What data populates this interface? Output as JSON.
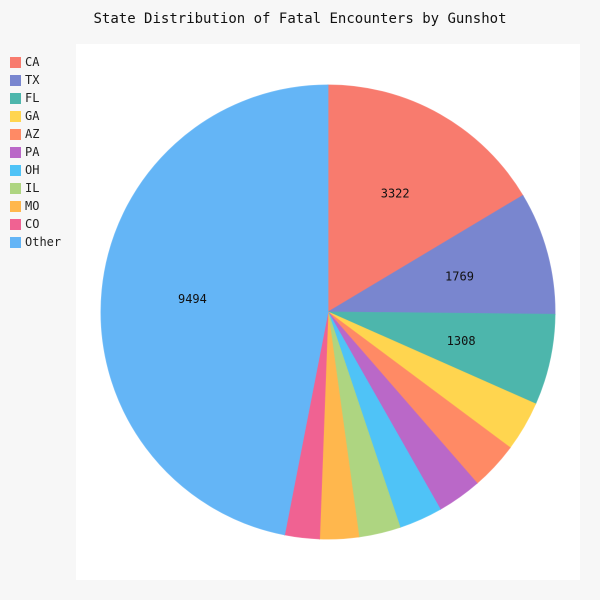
{
  "chart_data": {
    "type": "pie",
    "title": "State Distribution of Fatal Encounters by Gunshot",
    "legend_position": "left",
    "slices": [
      {
        "label": "CA",
        "value": 3322,
        "color": "#f87b6e",
        "show_label": true
      },
      {
        "label": "TX",
        "value": 1769,
        "color": "#7986cf",
        "show_label": true
      },
      {
        "label": "FL",
        "value": 1308,
        "color": "#4db6ac",
        "show_label": true
      },
      {
        "label": "GA",
        "value": 720,
        "color": "#ffd54f",
        "show_label": false
      },
      {
        "label": "AZ",
        "value": 690,
        "color": "#ff8a65",
        "show_label": false
      },
      {
        "label": "PA",
        "value": 640,
        "color": "#ba68c8",
        "show_label": false
      },
      {
        "label": "OH",
        "value": 625,
        "color": "#4fc3f7",
        "show_label": false
      },
      {
        "label": "IL",
        "value": 600,
        "color": "#aed581",
        "show_label": false
      },
      {
        "label": "MO",
        "value": 560,
        "color": "#ffb74d",
        "show_label": false
      },
      {
        "label": "CO",
        "value": 500,
        "color": "#f06292",
        "show_label": false
      },
      {
        "label": "Other",
        "value": 9494,
        "color": "#64b5f6",
        "show_label": true
      }
    ]
  }
}
